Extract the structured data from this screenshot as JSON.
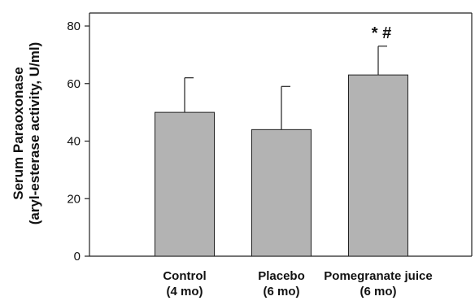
{
  "chart_data": {
    "type": "bar",
    "title": "",
    "xlabel": "",
    "ylabel_line1": "Serum Paraoxonase",
    "ylabel_line2": "(aryl-esterase activity, U/ml)",
    "ylim": [
      0,
      80
    ],
    "yticks": [
      0,
      20,
      40,
      60,
      80
    ],
    "grid": false,
    "categories": [
      {
        "line1": "Control",
        "line2": "(4 mo)"
      },
      {
        "line1": "Placebo",
        "line2": "(6 mo)"
      },
      {
        "line1": "Pomegranate juice",
        "line2": "(6 mo)"
      }
    ],
    "values": [
      50,
      44,
      63
    ],
    "error_upper": [
      62,
      59,
      73
    ],
    "annotations": [
      "",
      "",
      "* #"
    ],
    "colors": {
      "bar_fill": "#b3b3b3",
      "bar_stroke": "#222222",
      "axis": "#222222",
      "text": "#111111"
    }
  }
}
